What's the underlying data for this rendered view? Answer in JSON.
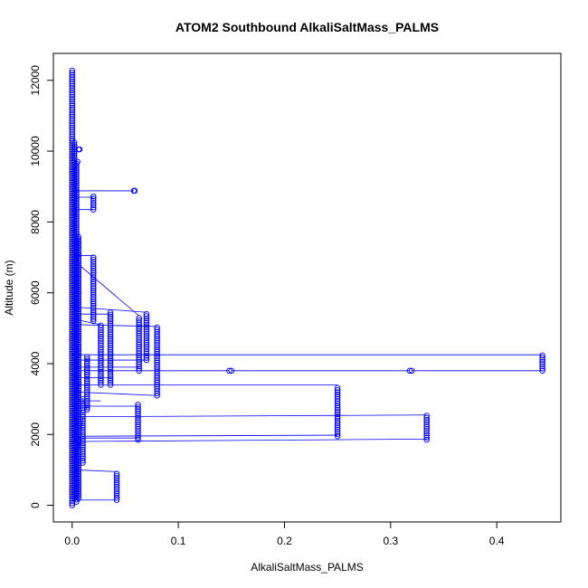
{
  "chart_data": {
    "type": "scatter",
    "title": "ATOM2 Southbound AlkaliSaltMass_PALMS",
    "xlabel": "AlkaliSaltMass_PALMS",
    "ylabel": "Altitude (m)",
    "xlim": [
      -0.0177,
      0.4604
    ],
    "ylim": [
      -470,
      12760
    ],
    "xticks": [
      0.0,
      0.1,
      0.2,
      0.3,
      0.4
    ],
    "xtick_labels": [
      "0.0",
      "0.1",
      "0.2",
      "0.3",
      "0.4"
    ],
    "yticks": [
      0,
      2000,
      4000,
      6000,
      8000,
      10000,
      12000
    ],
    "ytick_labels": [
      "0",
      "2000",
      "4000",
      "6000",
      "8000",
      "10000",
      "12000"
    ],
    "grid": false,
    "colors": {
      "series": "#0000ff",
      "axis": "#000000"
    },
    "columns": [
      {
        "x": 0.0,
        "y": [
          0,
          12300
        ]
      },
      {
        "x": 0.002,
        "y": [
          200,
          10300
        ]
      },
      {
        "x": 0.004,
        "y": [
          100,
          9700
        ]
      },
      {
        "x": 0.006,
        "y": [
          200,
          7600
        ]
      },
      {
        "x": 0.01,
        "y": [
          1200,
          3000
        ]
      },
      {
        "x": 0.014,
        "y": [
          2700,
          4200
        ]
      },
      {
        "x": 0.02,
        "y": [
          5200,
          7000
        ]
      },
      {
        "x": 0.02,
        "y": [
          8350,
          8750
        ]
      },
      {
        "x": 0.027,
        "y": [
          3400,
          5100
        ]
      },
      {
        "x": 0.036,
        "y": [
          3400,
          5450
        ]
      },
      {
        "x": 0.042,
        "y": [
          150,
          950
        ]
      },
      {
        "x": 0.062,
        "y": [
          1850,
          2850
        ]
      },
      {
        "x": 0.063,
        "y": [
          3800,
          5300
        ]
      },
      {
        "x": 0.07,
        "y": [
          4100,
          5450
        ]
      },
      {
        "x": 0.08,
        "y": [
          3100,
          5050
        ]
      },
      {
        "x": 0.25,
        "y": [
          1950,
          3350
        ]
      },
      {
        "x": 0.334,
        "y": [
          1850,
          2550
        ]
      },
      {
        "x": 0.443,
        "y": [
          3800,
          4250
        ]
      }
    ],
    "points": [
      {
        "x": 0.006,
        "y": 10050
      },
      {
        "x": 0.007,
        "y": 10050
      },
      {
        "x": 0.005,
        "y": 9700
      },
      {
        "x": 0.058,
        "y": 8880
      },
      {
        "x": 0.059,
        "y": 8880
      },
      {
        "x": 0.148,
        "y": 3800
      },
      {
        "x": 0.15,
        "y": 3800
      },
      {
        "x": 0.318,
        "y": 3800
      },
      {
        "x": 0.32,
        "y": 3800
      }
    ],
    "connectors": [
      [
        [
          0.0,
          8880
        ],
        [
          0.058,
          8880
        ]
      ],
      [
        [
          0.0,
          8700
        ],
        [
          0.02,
          8700
        ]
      ],
      [
        [
          0.003,
          8350
        ],
        [
          0.02,
          8350
        ]
      ],
      [
        [
          0.003,
          7050
        ],
        [
          0.02,
          7050
        ]
      ],
      [
        [
          0.006,
          6800
        ],
        [
          0.063,
          5350
        ]
      ],
      [
        [
          0.002,
          5600
        ],
        [
          0.07,
          5450
        ]
      ],
      [
        [
          0.003,
          5400
        ],
        [
          0.036,
          5400
        ]
      ],
      [
        [
          0.006,
          5100
        ],
        [
          0.08,
          5050
        ]
      ],
      [
        [
          0.002,
          5250
        ],
        [
          0.027,
          5100
        ]
      ],
      [
        [
          0.0,
          4250
        ],
        [
          0.443,
          4250
        ]
      ],
      [
        [
          0.004,
          4100
        ],
        [
          0.07,
          4100
        ]
      ],
      [
        [
          0.005,
          3900
        ],
        [
          0.063,
          3900
        ]
      ],
      [
        [
          0.0,
          3800
        ],
        [
          0.148,
          3800
        ]
      ],
      [
        [
          0.15,
          3800
        ],
        [
          0.318,
          3800
        ]
      ],
      [
        [
          0.32,
          3800
        ],
        [
          0.443,
          3800
        ]
      ],
      [
        [
          0.004,
          3600
        ],
        [
          0.036,
          3600
        ]
      ],
      [
        [
          0.005,
          3400
        ],
        [
          0.25,
          3400
        ]
      ],
      [
        [
          0.003,
          3200
        ],
        [
          0.08,
          3100
        ]
      ],
      [
        [
          0.004,
          2950
        ],
        [
          0.027,
          2950
        ]
      ],
      [
        [
          0.002,
          2800
        ],
        [
          0.062,
          2800
        ]
      ],
      [
        [
          0.003,
          2500
        ],
        [
          0.334,
          2550
        ]
      ],
      [
        [
          0.0,
          1950
        ],
        [
          0.25,
          1980
        ]
      ],
      [
        [
          0.003,
          1900
        ],
        [
          0.062,
          1900
        ]
      ],
      [
        [
          0.0,
          1800
        ],
        [
          0.334,
          1870
        ]
      ],
      [
        [
          0.004,
          1000
        ],
        [
          0.042,
          950
        ]
      ],
      [
        [
          0.0,
          150
        ],
        [
          0.042,
          150
        ]
      ],
      [
        [
          0.006,
          1500
        ],
        [
          0.01,
          2500
        ]
      ],
      [
        [
          0.01,
          3000
        ],
        [
          0.014,
          2700
        ]
      ]
    ]
  }
}
